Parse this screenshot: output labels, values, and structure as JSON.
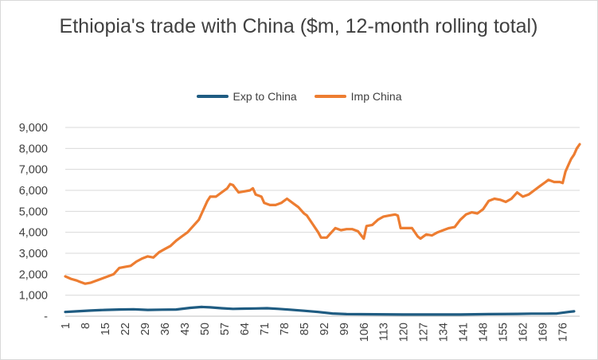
{
  "chart_data": {
    "type": "line",
    "title": "Ethiopia's trade with China ($m, 12-month rolling total)",
    "x": {
      "start": 1,
      "end": 180
    },
    "x_tick_labels": [
      "1",
      "8",
      "15",
      "22",
      "29",
      "36",
      "43",
      "50",
      "57",
      "64",
      "71",
      "78",
      "85",
      "92",
      "99",
      "106",
      "113",
      "120",
      "127",
      "134",
      "141",
      "148",
      "155",
      "162",
      "169",
      "176"
    ],
    "y_tick_labels": [
      "-",
      "1,000",
      "2,000",
      "3,000",
      "4,000",
      "5,000",
      "6,000",
      "7,000",
      "8,000",
      "9,000"
    ],
    "ylim": [
      0,
      9000
    ],
    "grid": true,
    "legend_position": "top",
    "series": [
      {
        "name": "Exp to China",
        "color": "#1f5c82",
        "points": [
          [
            1,
            200
          ],
          [
            5,
            230
          ],
          [
            10,
            270
          ],
          [
            15,
            300
          ],
          [
            20,
            320
          ],
          [
            25,
            330
          ],
          [
            30,
            300
          ],
          [
            35,
            310
          ],
          [
            40,
            320
          ],
          [
            45,
            400
          ],
          [
            49,
            440
          ],
          [
            52,
            420
          ],
          [
            56,
            380
          ],
          [
            60,
            350
          ],
          [
            64,
            360
          ],
          [
            68,
            370
          ],
          [
            72,
            380
          ],
          [
            76,
            350
          ],
          [
            80,
            310
          ],
          [
            85,
            260
          ],
          [
            90,
            200
          ],
          [
            95,
            130
          ],
          [
            100,
            100
          ],
          [
            110,
            90
          ],
          [
            120,
            80
          ],
          [
            130,
            80
          ],
          [
            140,
            80
          ],
          [
            150,
            100
          ],
          [
            160,
            110
          ],
          [
            165,
            120
          ],
          [
            170,
            120
          ],
          [
            174,
            130
          ],
          [
            178,
            200
          ],
          [
            180,
            230
          ]
        ]
      },
      {
        "name": "Imp China",
        "color": "#ed7d31",
        "points": [
          [
            1,
            1900
          ],
          [
            3,
            1780
          ],
          [
            5,
            1700
          ],
          [
            6,
            1650
          ],
          [
            8,
            1550
          ],
          [
            10,
            1600
          ],
          [
            12,
            1700
          ],
          [
            14,
            1800
          ],
          [
            16,
            1900
          ],
          [
            18,
            2000
          ],
          [
            20,
            2300
          ],
          [
            22,
            2350
          ],
          [
            24,
            2400
          ],
          [
            26,
            2600
          ],
          [
            28,
            2750
          ],
          [
            30,
            2850
          ],
          [
            32,
            2800
          ],
          [
            34,
            3050
          ],
          [
            36,
            3200
          ],
          [
            38,
            3350
          ],
          [
            40,
            3600
          ],
          [
            42,
            3800
          ],
          [
            44,
            4000
          ],
          [
            46,
            4300
          ],
          [
            48,
            4600
          ],
          [
            49,
            4900
          ],
          [
            50,
            5200
          ],
          [
            51,
            5500
          ],
          [
            52,
            5700
          ],
          [
            54,
            5700
          ],
          [
            56,
            5900
          ],
          [
            58,
            6100
          ],
          [
            59,
            6300
          ],
          [
            60,
            6250
          ],
          [
            62,
            5900
          ],
          [
            64,
            5950
          ],
          [
            66,
            6000
          ],
          [
            67,
            6100
          ],
          [
            68,
            5800
          ],
          [
            70,
            5700
          ],
          [
            71,
            5400
          ],
          [
            73,
            5300
          ],
          [
            75,
            5300
          ],
          [
            77,
            5400
          ],
          [
            79,
            5600
          ],
          [
            81,
            5400
          ],
          [
            83,
            5200
          ],
          [
            85,
            4900
          ],
          [
            86,
            4800
          ],
          [
            88,
            4400
          ],
          [
            90,
            4000
          ],
          [
            91,
            3750
          ],
          [
            93,
            3750
          ],
          [
            94,
            3900
          ],
          [
            96,
            4200
          ],
          [
            98,
            4100
          ],
          [
            100,
            4150
          ],
          [
            102,
            4150
          ],
          [
            104,
            4050
          ],
          [
            106,
            3700
          ],
          [
            107,
            4300
          ],
          [
            109,
            4350
          ],
          [
            111,
            4600
          ],
          [
            113,
            4750
          ],
          [
            115,
            4800
          ],
          [
            117,
            4850
          ],
          [
            118,
            4800
          ],
          [
            119,
            4200
          ],
          [
            121,
            4200
          ],
          [
            123,
            4200
          ],
          [
            125,
            3800
          ],
          [
            126,
            3700
          ],
          [
            128,
            3900
          ],
          [
            130,
            3850
          ],
          [
            132,
            4000
          ],
          [
            134,
            4100
          ],
          [
            136,
            4200
          ],
          [
            138,
            4250
          ],
          [
            140,
            4600
          ],
          [
            142,
            4850
          ],
          [
            144,
            4950
          ],
          [
            146,
            4900
          ],
          [
            148,
            5100
          ],
          [
            150,
            5500
          ],
          [
            152,
            5600
          ],
          [
            154,
            5550
          ],
          [
            156,
            5450
          ],
          [
            158,
            5600
          ],
          [
            160,
            5900
          ],
          [
            162,
            5700
          ],
          [
            164,
            5800
          ],
          [
            166,
            6000
          ],
          [
            168,
            6200
          ],
          [
            170,
            6400
          ],
          [
            171,
            6500
          ],
          [
            173,
            6400
          ],
          [
            175,
            6400
          ],
          [
            176,
            6350
          ],
          [
            177,
            6900
          ],
          [
            178,
            7200
          ],
          [
            179,
            7500
          ],
          [
            180,
            7700
          ],
          [
            181,
            8000
          ],
          [
            182,
            8200
          ]
        ]
      }
    ]
  }
}
